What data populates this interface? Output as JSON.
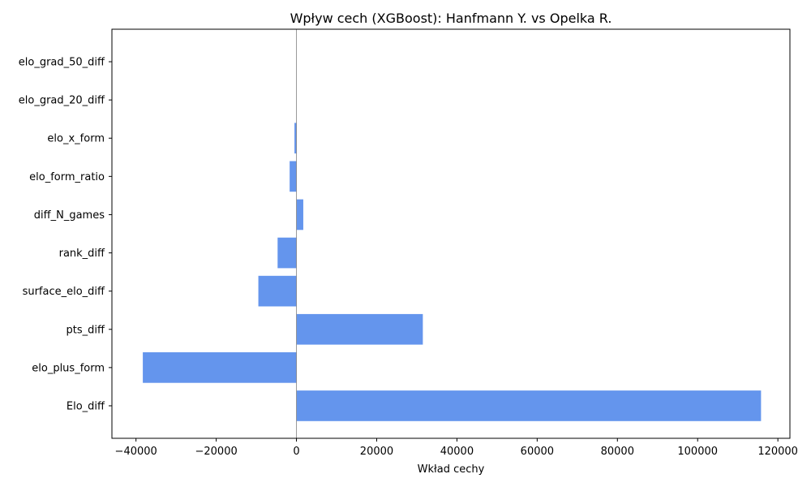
{
  "chart_data": {
    "type": "bar",
    "orientation": "horizontal",
    "title": "Wpływ cech (XGBoost): Hanfmann Y. vs Opelka R.",
    "xlabel": "Wkład cechy",
    "ylabel": "",
    "categories": [
      "Elo_diff",
      "elo_plus_form",
      "pts_diff",
      "surface_elo_diff",
      "rank_diff",
      "diff_N_games",
      "elo_form_ratio",
      "elo_x_form",
      "elo_grad_20_diff",
      "elo_grad_50_diff"
    ],
    "values": [
      115800,
      -38300,
      31500,
      -9500,
      -4700,
      1700,
      -1700,
      -500,
      0,
      0
    ],
    "xlim": [
      -46000,
      123000
    ],
    "xticks": [
      -40000,
      -20000,
      0,
      20000,
      40000,
      60000,
      80000,
      100000,
      120000
    ],
    "xtick_labels": [
      "−40000",
      "−20000",
      "0",
      "20000",
      "40000",
      "60000",
      "80000",
      "100000",
      "120000"
    ],
    "bar_color": "#6495ED",
    "zero_line_color": "#808080",
    "grid": false,
    "legend": "none"
  }
}
